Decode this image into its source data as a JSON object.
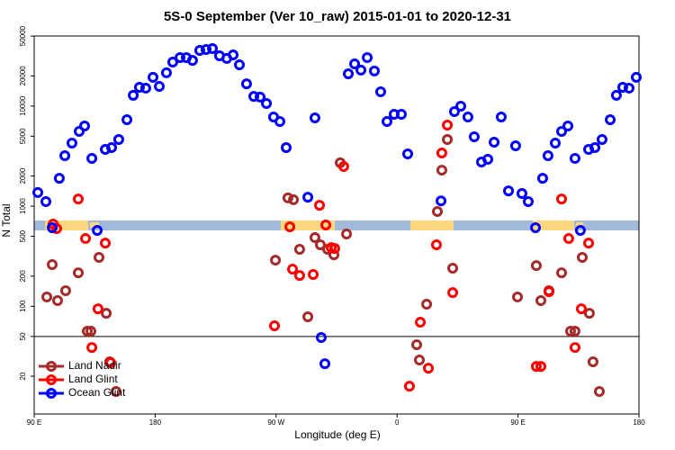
{
  "chart_data": {
    "type": "scatter",
    "title": "5S-0 September (Ver 10_raw)   2015-01-01 to 2020-12-31",
    "x_label": "Longitude (deg E)",
    "y_label": "N Total",
    "log_y": true,
    "xlim": [
      90,
      540
    ],
    "ylim": [
      8.4,
      50100
    ],
    "xticks": [
      {
        "value": 90,
        "label": "90 E"
      },
      180,
      {
        "value": 270,
        "label": "90 W"
      },
      {
        "value": 360,
        "label": "0"
      },
      {
        "value": 450,
        "label": "90 E"
      },
      {
        "value": 540,
        "label": "180"
      }
    ],
    "yticks": [
      20,
      50,
      100,
      200,
      500,
      1000,
      2000,
      5000,
      10000,
      20000,
      50000
    ],
    "hline": 50,
    "legend": "bottom-left",
    "series": [
      {
        "name": "Land Nadir",
        "color": "#a52a2a",
        "x": [
          99.4,
          103.4,
          107.4,
          113.4,
          122.8,
          129.5,
          132.2,
          138.2,
          143.6,
          146.2,
          150.9,
          269.5,
          278.8,
          282.9,
          287.5,
          293.6,
          298.9,
          302.9,
          308.3,
          313.0,
          317.7,
          322.4,
          374.6,
          376.6,
          382.0,
          390.0,
          393.3,
          397.4,
          401.4,
          449.6,
          463.6,
          467.0,
          473.0,
          482.4,
          489.1,
          492.4,
          497.8,
          503.1,
          505.8,
          510.5
        ],
        "values": [
          124,
          261,
          114,
          143,
          216,
          56.4,
          56.4,
          308,
          85.2,
          27.9,
          14.1,
          289,
          1210,
          1160,
          371,
          78.5,
          485,
          411,
          371,
          327,
          2710,
          527,
          41.3,
          29.1,
          105,
          885,
          2290,
          4630,
          240,
          124,
          255,
          114,
          143,
          216,
          56.4,
          56.4,
          308,
          85.2,
          27.9,
          14.1
        ]
      },
      {
        "name": "Land Glint",
        "color": "#ff0000",
        "x": [
          104.1,
          106.7,
          122.8,
          128.2,
          132.9,
          137.5,
          142.9,
          146.9,
          268.8,
          280.2,
          282.2,
          287.5,
          297.6,
          302.3,
          307.0,
          311.0,
          313.6,
          320.3,
          369.2,
          377.3,
          383.3,
          389.3,
          393.3,
          397.4,
          401.4,
          463.6,
          467.0,
          473.0,
          482.4,
          487.7,
          492.4,
          497.1,
          502.5
        ],
        "values": [
          662,
          597,
          1180,
          475,
          38.8,
          94.4,
          428,
          27.3,
          63.8,
          622,
          235,
          203,
          208,
          1020,
          649,
          386,
          378,
          2490,
          15.9,
          69.3,
          24.1,
          411,
          3400,
          6460,
          137,
          25.1,
          25.1,
          140,
          1180,
          475,
          38.8,
          94.4,
          428
        ]
      },
      {
        "name": "Ocean Glint",
        "color": "#0000ff",
        "x": [
          92.7,
          98.7,
          103.4,
          108.7,
          112.8,
          118.1,
          123.5,
          127.5,
          132.9,
          136.9,
          142.9,
          147.6,
          152.9,
          159.0,
          163.7,
          168.3,
          173.0,
          178.4,
          183.1,
          188.4,
          193.1,
          198.5,
          203.2,
          207.8,
          213.2,
          217.9,
          222.6,
          227.9,
          233.3,
          238.0,
          242.7,
          248.0,
          253.4,
          258.1,
          262.8,
          268.1,
          272.8,
          277.5,
          293.6,
          298.9,
          303.6,
          306.3,
          323.7,
          328.4,
          333.1,
          337.8,
          343.1,
          347.8,
          352.5,
          357.8,
          363.2,
          367.9,
          392.7,
          402.7,
          407.4,
          412.7,
          417.4,
          422.8,
          427.5,
          432.2,
          437.5,
          442.9,
          448.2,
          452.9,
          457.6,
          463.0,
          468.3,
          472.3,
          477.7,
          482.4,
          487.1,
          492.4,
          496.4,
          502.5,
          507.2,
          512.5,
          518.6,
          523.2,
          527.9,
          532.6,
          538.0
        ],
        "values": [
          1370,
          1110,
          610,
          1900,
          3190,
          4270,
          5580,
          6320,
          3000,
          573,
          3690,
          3850,
          4630,
          7310,
          12800,
          15400,
          15100,
          19400,
          15700,
          21500,
          27500,
          30500,
          30500,
          28600,
          36000,
          36700,
          37500,
          31800,
          29900,
          32400,
          25800,
          16700,
          12500,
          12300,
          10600,
          7780,
          7020,
          3850,
          1230,
          7620,
          48.8,
          26.7,
          21000,
          26400,
          22900,
          30500,
          22400,
          13900,
          7020,
          8280,
          8280,
          3330,
          1130,
          8810,
          9980,
          7780,
          4930,
          2760,
          2940,
          4360,
          7780,
          1420,
          4010,
          1340,
          1110,
          610,
          1900,
          3190,
          4270,
          5580,
          6320,
          3000,
          573,
          3690,
          3850,
          4630,
          7310,
          12800,
          15400,
          15100,
          19400
        ]
      }
    ]
  }
}
